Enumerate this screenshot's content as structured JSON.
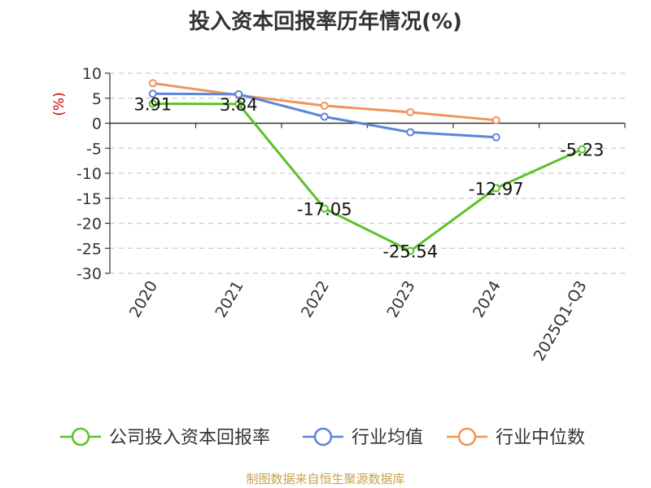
{
  "chart_data": {
    "type": "line",
    "title": "投入资本回报率历年情况(%)",
    "ylabel": "(%)",
    "categories": [
      "2020",
      "2021",
      "2022",
      "2023",
      "2024",
      "2025Q1-Q3"
    ],
    "ylim": [
      -30,
      10
    ],
    "yticks": [
      10,
      5,
      0,
      -5,
      -10,
      -15,
      -20,
      -25,
      -30
    ],
    "grid": true,
    "legend_position": "bottom",
    "series": [
      {
        "name": "公司投入资本回报率",
        "color": "#5bc22a",
        "values": [
          3.91,
          3.84,
          -17.05,
          -25.54,
          -12.97,
          -5.23
        ],
        "labels": [
          "3.91",
          "3.84",
          "-17.05",
          "-25.54",
          "-12.97",
          "-5.23"
        ]
      },
      {
        "name": "行业均值",
        "color": "#5b86d9",
        "values": [
          5.9,
          5.8,
          1.3,
          -1.8,
          -2.8,
          null
        ]
      },
      {
        "name": "行业中位数",
        "color": "#f4925c",
        "values": [
          8.0,
          5.6,
          3.5,
          2.2,
          0.6,
          null
        ]
      }
    ]
  },
  "source": "制图数据来自恒生聚源数据库"
}
